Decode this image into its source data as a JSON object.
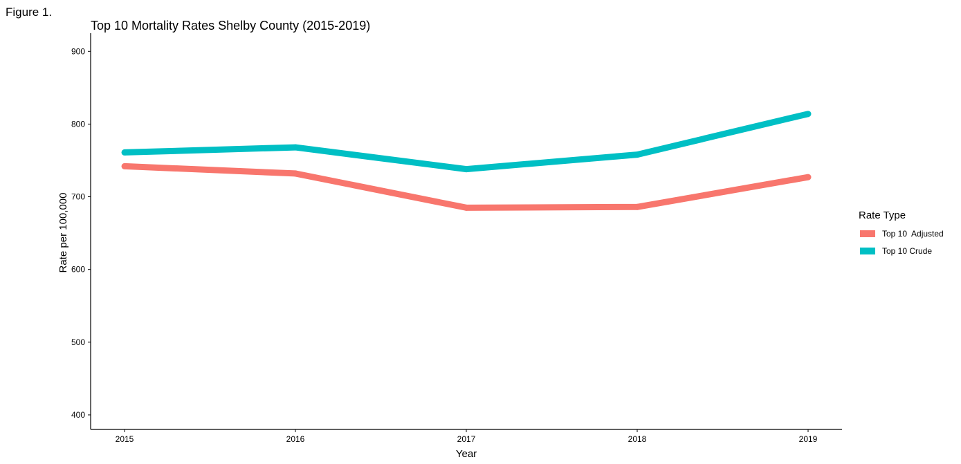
{
  "figure_label": "Figure 1.",
  "chart_data": {
    "type": "line",
    "title": "Top 10 Mortality Rates Shelby County (2015-2019)",
    "xlabel": "Year",
    "ylabel": "Rate per 100,000",
    "x": [
      "2015",
      "2016",
      "2017",
      "2018",
      "2019"
    ],
    "yticks": [
      "400",
      "500",
      "600",
      "700",
      "800",
      "900"
    ],
    "ylim": [
      380,
      925
    ],
    "grid": false,
    "legend": {
      "title": "Rate Type",
      "placement": "right"
    },
    "series": [
      {
        "name": "Top 10  Adjusted",
        "color": "#F8766D",
        "values": [
          742,
          732,
          685,
          686,
          727
        ]
      },
      {
        "name": "Top 10 Crude",
        "color": "#00BFC4",
        "values": [
          761,
          768,
          738,
          758,
          814
        ]
      }
    ]
  }
}
